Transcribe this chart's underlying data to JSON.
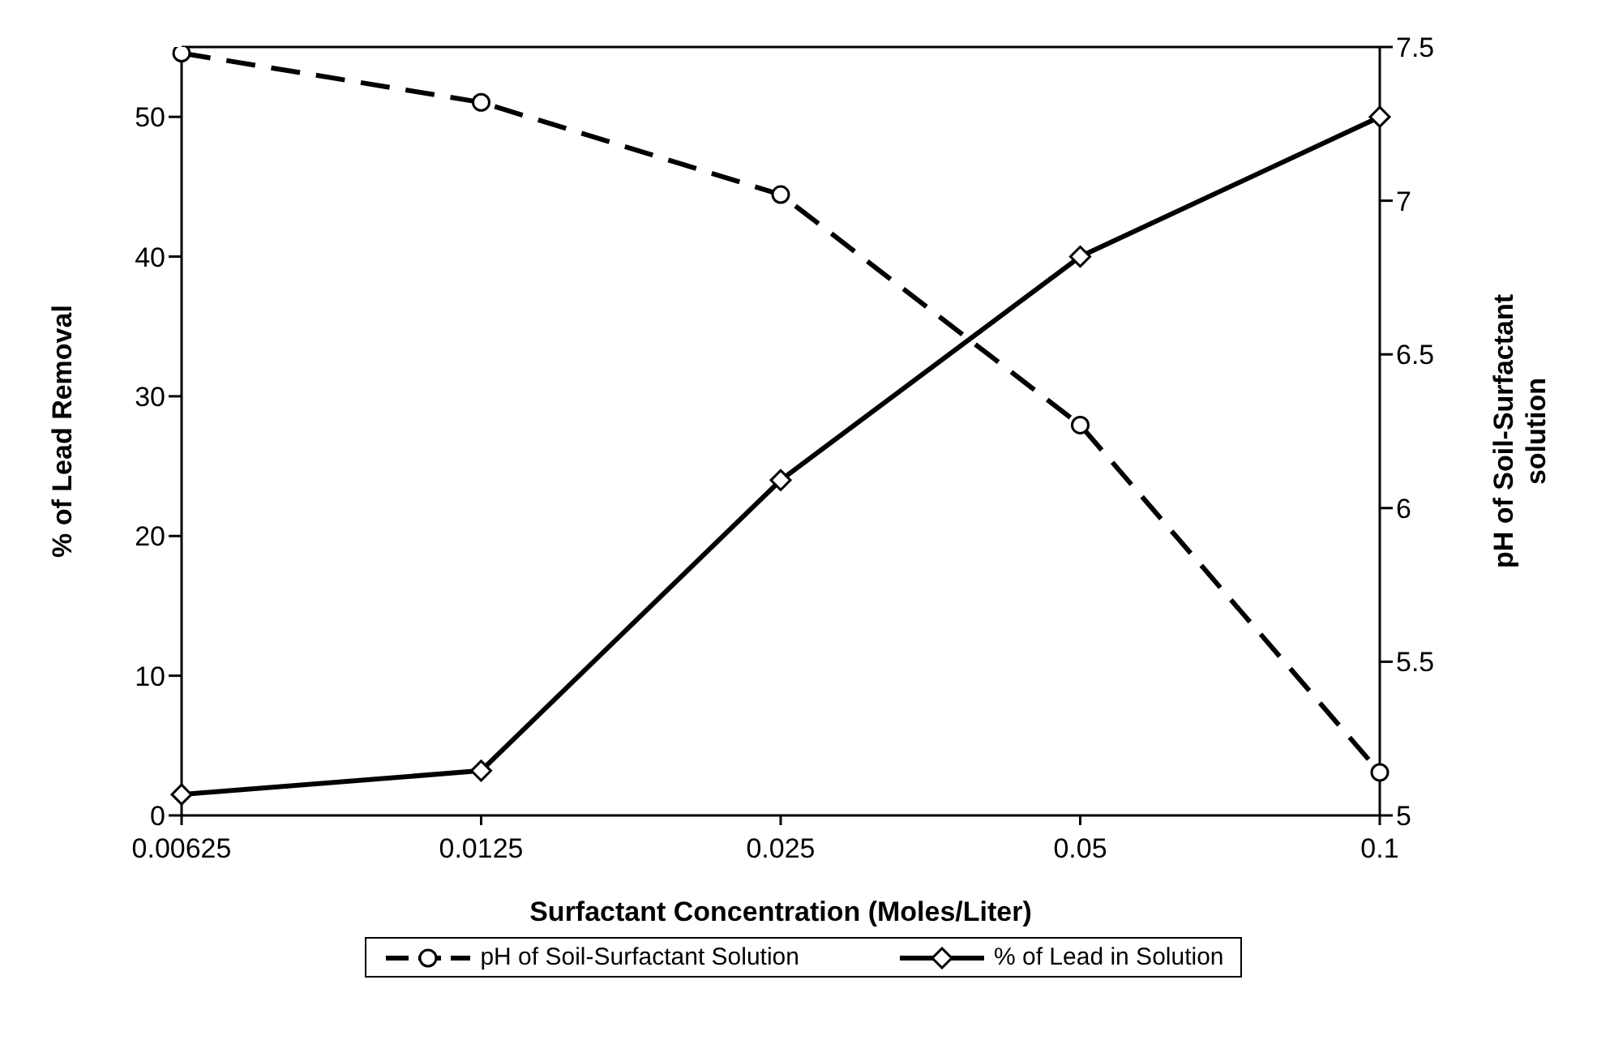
{
  "chart_data": {
    "type": "line",
    "xlabel": "Surfactant Concentration (Moles/Liter)",
    "ylabel": "% of Lead Removal",
    "y2label": "pH of Soil-Surfactant solution",
    "categories": [
      "0.00625",
      "0.0125",
      "0.025",
      "0.05",
      "0.1"
    ],
    "ylim": [
      0,
      55
    ],
    "yticks": [
      0,
      10,
      20,
      30,
      40,
      50
    ],
    "y2lim": [
      5,
      7.5
    ],
    "y2ticks": [
      5,
      5.5,
      6,
      6.5,
      7,
      7.5
    ],
    "legend": "bottom",
    "grid": false,
    "series": [
      {
        "name": "pH of Soil-Surfactant Solution",
        "color": "#000000",
        "axis": "y2",
        "marker": "circle",
        "line_style": "dashed",
        "values": [
          7.48,
          7.32,
          7.02,
          6.27,
          5.14
        ]
      },
      {
        "name": "% of Lead in Solution",
        "color": "#000000",
        "marker": "diamond",
        "line_style": "solid",
        "values": [
          1.5,
          3.2,
          24.0,
          40.0,
          50.0
        ]
      }
    ]
  }
}
